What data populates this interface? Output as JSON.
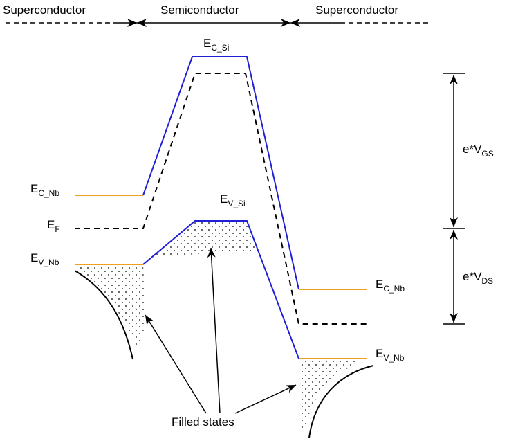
{
  "regions": {
    "left": "Superconductor",
    "middle": "Semiconductor",
    "right": "Superconductor"
  },
  "labels": {
    "ec_si": {
      "main": "E",
      "sub": "C_Si"
    },
    "ev_si": {
      "main": "E",
      "sub": "V_Si"
    },
    "ec_nb_left": {
      "main": "E",
      "sub": "C_Nb"
    },
    "ef": {
      "main": "E",
      "sub": "F"
    },
    "ev_nb_left": {
      "main": "E",
      "sub": "V_Nb"
    },
    "ec_nb_right": {
      "main": "E",
      "sub": "C_Nb"
    },
    "ev_nb_right": {
      "main": "E",
      "sub": "V_Nb"
    },
    "vgs": {
      "main": "e*V",
      "sub": "GS"
    },
    "vds": {
      "main": "e*V",
      "sub": "DS"
    }
  },
  "filled_states": "Filled states",
  "colors": {
    "band_edge": "#1f1fd6",
    "nb_level": "#f0a020",
    "line": "#000000"
  }
}
